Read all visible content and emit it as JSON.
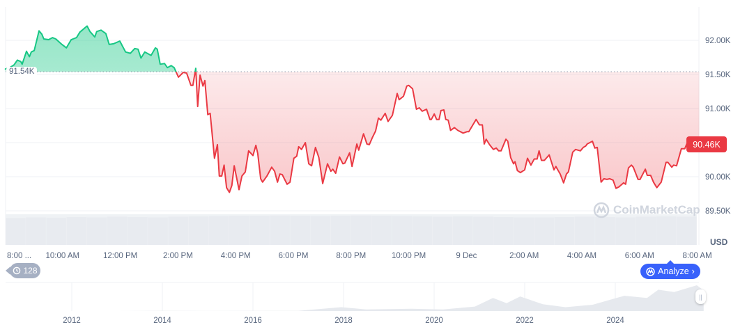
{
  "chart_data": {
    "type": "line",
    "currency_label": "USD",
    "baseline": {
      "value": 91.54,
      "label": "91.54K"
    },
    "current_price": {
      "value": 90.46,
      "label": "90.46K"
    },
    "colors": {
      "up": "#16c784",
      "down": "#ea3943",
      "accent": "#3861fb",
      "badge": "#a6b0c3"
    },
    "ylim": [
      89.4,
      92.3
    ],
    "yticks": [
      {
        "v": 92.0,
        "label": "92.00K"
      },
      {
        "v": 91.5,
        "label": "91.50K"
      },
      {
        "v": 91.0,
        "label": "91.00K"
      },
      {
        "v": 90.0,
        "label": "90.00K"
      },
      {
        "v": 89.5,
        "label": "89.50K"
      }
    ],
    "grid_values": [
      92.0,
      91.5,
      91.0,
      90.5,
      90.0,
      89.5
    ],
    "xticks": [
      {
        "t": "08:00",
        "label": "8:00 ..."
      },
      {
        "t": "10:00",
        "label": "10:00 AM"
      },
      {
        "t": "12:00",
        "label": "12:00 PM"
      },
      {
        "t": "14:00",
        "label": "2:00 PM"
      },
      {
        "t": "16:00",
        "label": "4:00 PM"
      },
      {
        "t": "18:00",
        "label": "6:00 PM"
      },
      {
        "t": "20:00",
        "label": "8:00 PM"
      },
      {
        "t": "22:00",
        "label": "10:00 PM"
      },
      {
        "t": "00:00",
        "label": "9 Dec"
      },
      {
        "t": "02:00",
        "label": "2:00 AM"
      },
      {
        "t": "04:00",
        "label": "4:00 AM"
      },
      {
        "t": "06:00",
        "label": "6:00 AM"
      },
      {
        "t": "08:00+",
        "label": "8:00 AM"
      }
    ],
    "series": [
      {
        "x": [
          "08:01",
          "08:10",
          "08:19",
          "08:26",
          "08:33",
          "08:36",
          "08:45",
          "08:51",
          "08:55",
          "09:01",
          "09:11",
          "09:17",
          "09:21",
          "09:31",
          "09:39",
          "09:46",
          "09:57",
          "10:08",
          "10:18",
          "10:29",
          "10:36",
          "10:51",
          "10:57",
          "11:07",
          "11:11",
          "11:20",
          "11:30",
          "11:37",
          "11:46",
          "11:59",
          "12:11",
          "12:21",
          "12:30",
          "12:37",
          "12:43",
          "12:51",
          "13:04",
          "13:13",
          "13:17",
          "13:23",
          "13:32",
          "13:38",
          "13:46",
          "13:52",
          "14:01",
          "14:11",
          "14:18",
          "14:27",
          "14:31",
          "14:37",
          "14:41",
          "14:46",
          "14:52",
          "14:56",
          "15:02",
          "15:07",
          "15:16",
          "15:22",
          "15:26",
          "15:31",
          "15:36",
          "15:41",
          "15:47",
          "15:52",
          "15:57",
          "16:07",
          "16:13",
          "16:20",
          "16:27",
          "16:36",
          "16:42",
          "16:46",
          "16:52",
          "16:56",
          "17:05",
          "17:15",
          "17:21",
          "17:27",
          "17:32",
          "17:37",
          "17:47",
          "17:53",
          "18:01",
          "18:07",
          "18:11",
          "18:17",
          "18:25",
          "18:32",
          "18:38",
          "18:46",
          "18:53",
          "19:01",
          "19:11",
          "19:18",
          "19:22",
          "19:28",
          "19:36",
          "19:43",
          "19:47",
          "19:57",
          "20:02",
          "20:12",
          "20:16",
          "20:26",
          "20:33",
          "20:38",
          "20:44",
          "20:51",
          "20:57",
          "21:02",
          "21:11",
          "21:17",
          "21:26",
          "21:36",
          "21:40",
          "21:49",
          "21:56",
          "22:00",
          "22:08",
          "22:16",
          "22:22",
          "22:28",
          "22:37",
          "22:44",
          "22:47",
          "22:53",
          "22:58",
          "23:03",
          "23:07",
          "23:13",
          "23:17",
          "23:22",
          "23:27",
          "23:35",
          "23:42",
          "23:53",
          "00:01",
          "00:05",
          "00:20",
          "00:27",
          "00:33",
          "00:37",
          "00:41",
          "00:48",
          "00:56",
          "01:02",
          "01:07",
          "01:12",
          "01:22",
          "01:26",
          "01:32",
          "01:38",
          "01:41",
          "01:46",
          "01:52",
          "02:01",
          "02:07",
          "02:14",
          "02:21",
          "02:27",
          "02:31",
          "02:36",
          "02:42",
          "02:52",
          "03:02",
          "03:06",
          "03:15",
          "03:22",
          "03:28",
          "03:32",
          "03:41",
          "03:47",
          "03:57",
          "04:03",
          "04:08",
          "04:11",
          "04:22",
          "04:27",
          "04:32",
          "04:40",
          "04:46",
          "04:52",
          "04:58",
          "05:05",
          "05:11",
          "05:17",
          "05:27",
          "05:31",
          "05:37",
          "05:43",
          "05:47",
          "05:57",
          "06:01",
          "06:12",
          "06:16",
          "06:23",
          "06:29",
          "06:36",
          "06:45",
          "06:55",
          "06:59",
          "07:07",
          "07:11",
          "07:17",
          "07:27",
          "07:34",
          "07:41",
          "07:47",
          "07:53",
          "07:59",
          "08:04"
        ],
        "y": [
          91.58,
          91.6,
          91.64,
          91.71,
          91.69,
          91.65,
          91.84,
          91.76,
          91.83,
          91.85,
          92.14,
          92.09,
          92.02,
          92.01,
          92.04,
          92.02,
          91.95,
          91.89,
          92.01,
          92.04,
          92.12,
          92.21,
          92.13,
          92.05,
          92.13,
          92.15,
          92.1,
          91.94,
          91.95,
          91.99,
          91.83,
          91.81,
          91.88,
          91.87,
          91.74,
          91.83,
          91.78,
          91.89,
          91.87,
          91.65,
          91.66,
          91.6,
          91.63,
          91.6,
          91.46,
          91.53,
          91.52,
          91.34,
          91.34,
          91.59,
          91.03,
          91.49,
          91.33,
          91.41,
          90.91,
          90.93,
          90.27,
          90.47,
          90.01,
          90.01,
          90.17,
          89.84,
          89.77,
          89.87,
          90.16,
          89.81,
          90.01,
          90.07,
          90.38,
          90.31,
          90.46,
          90.34,
          89.97,
          89.92,
          90.01,
          90.14,
          90.08,
          89.92,
          90.04,
          90.03,
          89.89,
          89.92,
          90.27,
          90.3,
          90.44,
          90.4,
          90.5,
          90.19,
          90.16,
          90.43,
          90.28,
          89.9,
          90.19,
          90.08,
          90.11,
          90.05,
          90.29,
          90.19,
          90.2,
          90.35,
          90.15,
          90.48,
          90.39,
          90.63,
          90.48,
          90.47,
          90.57,
          90.67,
          90.86,
          90.83,
          90.93,
          90.81,
          90.9,
          91.22,
          91.13,
          91.18,
          91.33,
          91.34,
          91.29,
          90.99,
          91.01,
          90.96,
          90.99,
          90.84,
          90.84,
          90.92,
          90.84,
          90.84,
          90.97,
          90.98,
          90.84,
          90.83,
          90.68,
          90.72,
          90.68,
          90.64,
          90.66,
          90.66,
          90.84,
          90.76,
          90.76,
          90.48,
          90.55,
          90.47,
          90.4,
          90.42,
          90.38,
          90.38,
          90.55,
          90.52,
          90.28,
          90.19,
          90.22,
          90.09,
          90.06,
          90.1,
          90.27,
          90.17,
          90.26,
          90.26,
          90.38,
          90.24,
          90.24,
          90.32,
          90.1,
          90.15,
          90.04,
          89.91,
          90.04,
          90.07,
          90.36,
          90.4,
          90.38,
          90.43,
          90.45,
          90.48,
          90.52,
          90.42,
          90.43,
          89.92,
          89.97,
          89.96,
          89.97,
          89.95,
          89.83,
          89.85,
          89.91,
          89.89,
          90.13,
          90.17,
          90.14,
          89.96,
          89.96,
          90.11,
          90.02,
          90.02,
          89.92,
          89.84,
          89.92,
          90.21,
          90.21,
          90.14,
          90.17,
          90.16,
          90.41,
          90.41,
          90.53,
          90.48,
          90.48,
          90.53,
          90.46
        ]
      }
    ],
    "volume_relative": [
      0.88,
      0.9,
      0.89,
      0.91,
      0.9,
      0.92,
      0.91,
      0.9,
      0.92,
      0.93,
      0.94,
      0.95,
      0.95,
      0.96,
      0.95,
      0.94,
      0.95,
      0.96,
      0.95,
      0.94,
      0.93,
      0.92,
      0.93,
      0.92,
      0.91,
      0.9,
      0.9,
      0.91,
      0.92,
      0.91,
      0.9,
      0.92,
      0.93,
      0.92
    ],
    "navigator": {
      "year_labels": [
        "2012",
        "2014",
        "2016",
        "2018",
        "2020",
        "2022",
        "2024"
      ],
      "x": [
        2010.6,
        2013.0,
        2013.9,
        2015.0,
        2017.0,
        2017.95,
        2018.5,
        2019.5,
        2020.2,
        2020.9,
        2021.3,
        2021.6,
        2021.9,
        2022.4,
        2022.9,
        2023.5,
        2024.2,
        2024.7,
        2024.95,
        2025.3,
        2025.8,
        2025.95
      ],
      "y": [
        0,
        0.1,
        1,
        0.3,
        1,
        17,
        7,
        10,
        7,
        20,
        58,
        35,
        65,
        30,
        17,
        28,
        68,
        58,
        95,
        85,
        115,
        92
      ]
    }
  },
  "watermark": "CoinMarketCap",
  "history_badge": {
    "count": "128",
    "icon": "history-clock-icon"
  },
  "analyze_button": {
    "label": "Analyze",
    "icon": "cmc-logo-icon",
    "chevron": "›"
  },
  "range_handle": {
    "glyph": "||"
  }
}
